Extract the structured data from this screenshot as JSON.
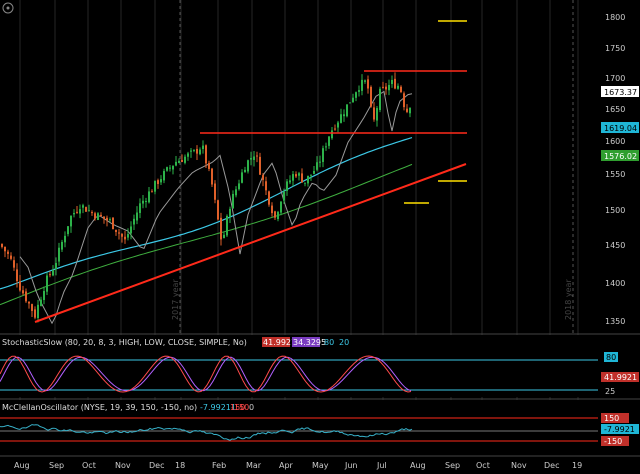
{
  "colors": {
    "background": "#000000",
    "grid": "#2a2a2a",
    "candle_up": "#2db34a",
    "candle_down": "#e0602a",
    "trendline": "#ff2a1a",
    "resistance": "#ff2a1a",
    "target_marks": "#ffe000",
    "ma_cyan": "#3cc8e6",
    "ma_gray": "#9a9a9a",
    "ma_green": "#3fae3f",
    "stoch_k": "#ff4a4a",
    "stoch_d": "#b060ff",
    "mcclellan": "#37b0c8",
    "price_label_bg": "#ffffff",
    "cyan_label_bg": "#1fb6d6",
    "green_label_bg": "#2f9e2f"
  },
  "top_icon": "settings-gear-icon",
  "year_marks": {
    "y2017": "2017 year",
    "y2018": "2018 year"
  },
  "price_axis": {
    "ticks": [
      "1800",
      "1750",
      "1700",
      "1650",
      "1600",
      "1550",
      "1500",
      "1450",
      "1400",
      "1350"
    ],
    "last_price": "1673.37",
    "ma_cyan_value": "1619.04",
    "ma_green_value": "1576.02"
  },
  "stochastic": {
    "title": "StochasticSlow (80, 20, 8, 3, HIGH, LOW, CLOSE, SIMPLE, No)",
    "k_value": "41.9921",
    "d_value": "34.3295",
    "level_high": "80",
    "level_low": "20",
    "axis_ticks": [
      "80",
      "25"
    ],
    "axis_value": "41.9921"
  },
  "mcclellan": {
    "title": "McClellanOscillator (NYSE, 19, 39, 150, -150, no)",
    "value": "-7.99211",
    "upper": "150",
    "lower": "-150",
    "zero": "0",
    "axis_value": "-7.9921",
    "axis_upper": "150",
    "axis_lower": "-150"
  },
  "x_axis": [
    "Aug",
    "Sep",
    "Oct",
    "Nov",
    "Dec",
    "18",
    "Feb",
    "Mar",
    "Apr",
    "May",
    "Jun",
    "Jul",
    "Aug",
    "Sep",
    "Oct",
    "Nov",
    "Dec",
    "19"
  ],
  "chart_data": {
    "type": "candlestick",
    "symbol_hint": "",
    "y_range": [
      1320,
      1820
    ],
    "x_domain_months": [
      "2017-08",
      "2019-01"
    ],
    "series": [
      {
        "name": "",
        "kind": "approximate_close_path",
        "points": [
          [
            "Aug",
            1460
          ],
          [
            "Aug",
            1420
          ],
          [
            "Aug",
            1350
          ],
          [
            "Sep",
            1420
          ],
          [
            "Sep",
            1450
          ],
          [
            "Oct",
            1520
          ],
          [
            "Oct",
            1505
          ],
          [
            "Nov",
            1490
          ],
          [
            "Nov",
            1470
          ],
          [
            "Dec",
            1530
          ],
          [
            "Dec",
            1550
          ],
          [
            "18",
            1590
          ],
          [
            "18",
            1610
          ],
          [
            "Feb",
            1520
          ],
          [
            "Feb",
            1540
          ],
          [
            "Mar",
            1590
          ],
          [
            "Mar",
            1550
          ],
          [
            "Apr",
            1520
          ],
          [
            "Apr",
            1560
          ],
          [
            "May",
            1580
          ],
          [
            "May",
            1620
          ],
          [
            "Jun",
            1660
          ],
          [
            "Jun",
            1700
          ],
          [
            "Jul",
            1680
          ],
          [
            "Jul",
            1700
          ],
          [
            "Aug",
            1673
          ]
        ]
      }
    ]
  }
}
